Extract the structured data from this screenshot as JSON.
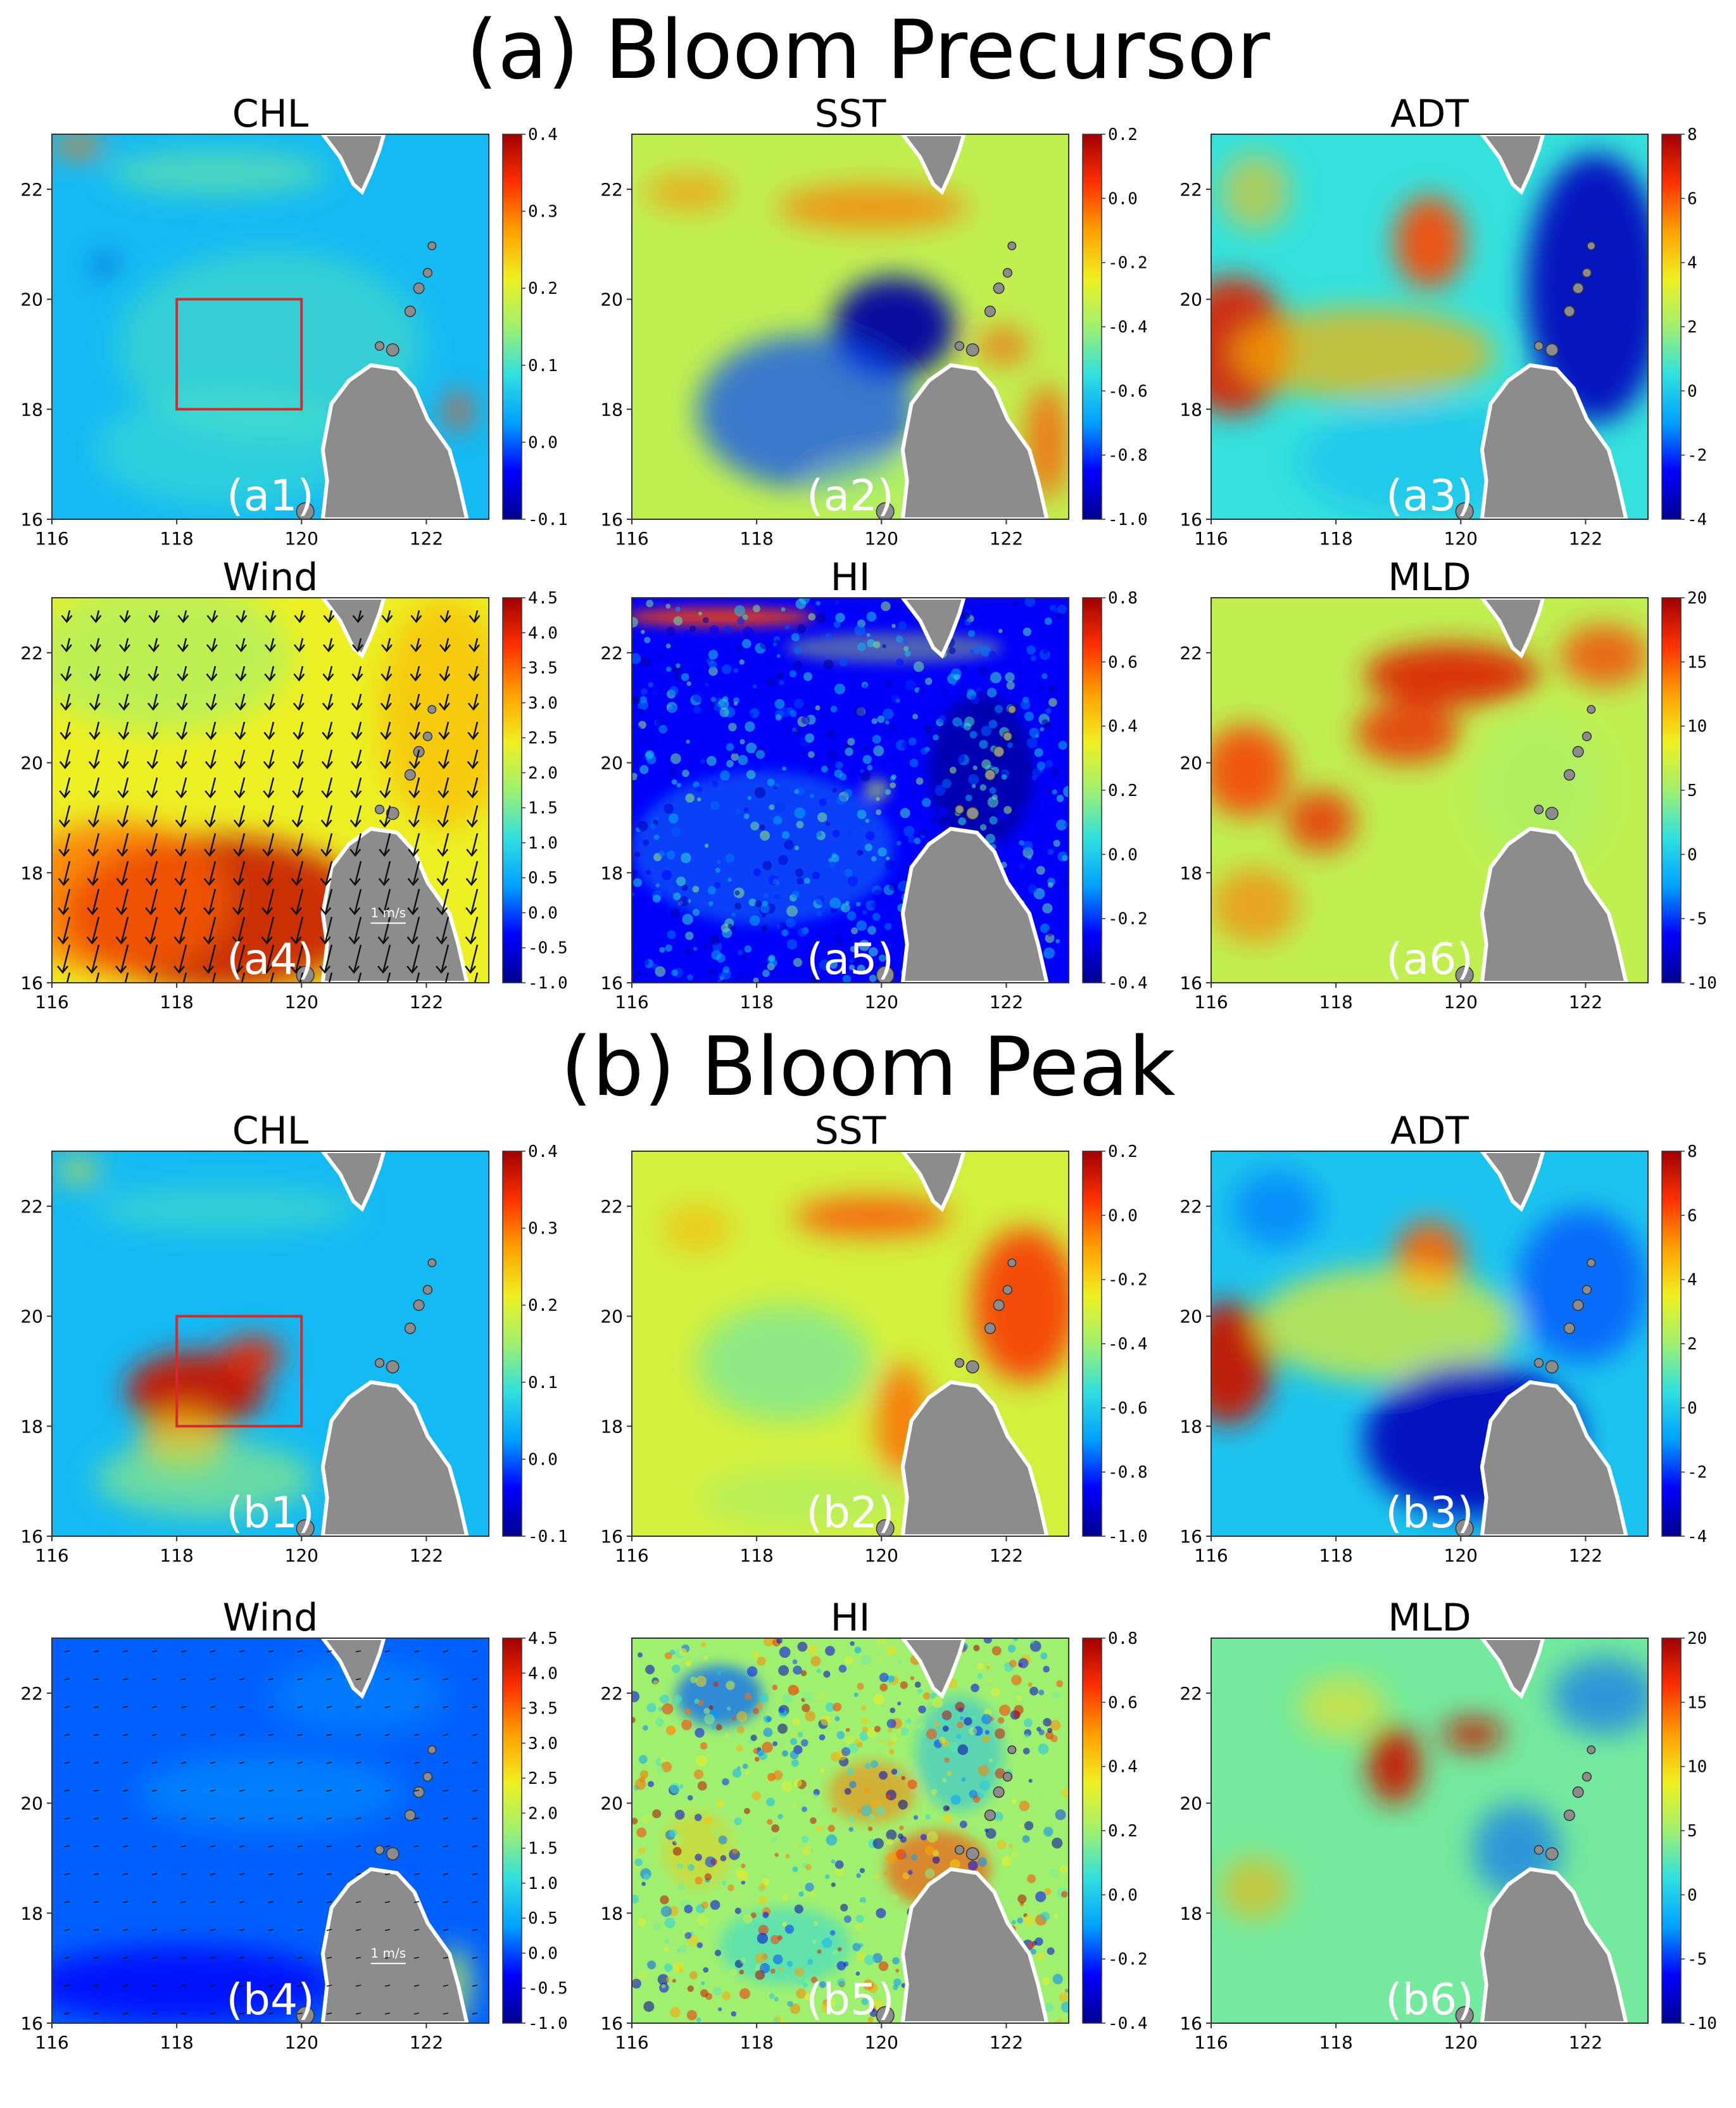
{
  "figure": {
    "sections": [
      {
        "id": "a",
        "title": "(a) Bloom Precursor"
      },
      {
        "id": "b",
        "title": "(b) Bloom Peak"
      }
    ],
    "axes": {
      "lon_ticks": [
        "116",
        "118",
        "120",
        "122"
      ],
      "lat_ticks": [
        "16",
        "18",
        "20",
        "22"
      ]
    },
    "panels": [
      {
        "id": "a1",
        "title": "CHL",
        "label": "(a1)",
        "cbar": [
          "0.4",
          "0.3",
          "0.2",
          "0.1",
          "0.0",
          "-0.1"
        ],
        "field": "chl_pre",
        "box": true
      },
      {
        "id": "a2",
        "title": "SST",
        "label": "(a2)",
        "cbar": [
          "0.2",
          "0.0",
          "-0.2",
          "-0.4",
          "-0.6",
          "-0.8",
          "-1.0"
        ],
        "field": "sst_pre"
      },
      {
        "id": "a3",
        "title": "ADT",
        "label": "(a3)",
        "cbar": [
          "8",
          "6",
          "4",
          "2",
          "0",
          "-2",
          "-4"
        ],
        "field": "adt_pre"
      },
      {
        "id": "a4",
        "title": "Wind",
        "label": "(a4)",
        "cbar": [
          "4.5",
          "4.0",
          "3.5",
          "3.0",
          "2.5",
          "2.0",
          "1.5",
          "1.0",
          "0.5",
          "0.0",
          "-0.5",
          "-1.0"
        ],
        "field": "wind_pre",
        "arrows": true,
        "scale": "1 m/s"
      },
      {
        "id": "a5",
        "title": "HI",
        "label": "(a5)",
        "cbar": [
          "0.8",
          "0.6",
          "0.4",
          "0.2",
          "0.0",
          "-0.2",
          "-0.4"
        ],
        "field": "hi_pre"
      },
      {
        "id": "a6",
        "title": "MLD",
        "label": "(a6)",
        "cbar": [
          "20",
          "15",
          "10",
          "5",
          "0",
          "-5",
          "-10"
        ],
        "field": "mld_pre"
      },
      {
        "id": "b1",
        "title": "CHL",
        "label": "(b1)",
        "cbar": [
          "0.4",
          "0.3",
          "0.2",
          "0.1",
          "0.0",
          "-0.1"
        ],
        "field": "chl_peak",
        "box": true
      },
      {
        "id": "b2",
        "title": "SST",
        "label": "(b2)",
        "cbar": [
          "0.2",
          "0.0",
          "-0.2",
          "-0.4",
          "-0.6",
          "-0.8",
          "-1.0"
        ],
        "field": "sst_peak"
      },
      {
        "id": "b3",
        "title": "ADT",
        "label": "(b3)",
        "cbar": [
          "8",
          "6",
          "4",
          "2",
          "0",
          "-2",
          "-4"
        ],
        "field": "adt_peak"
      },
      {
        "id": "b4",
        "title": "Wind",
        "label": "(b4)",
        "cbar": [
          "4.5",
          "4.0",
          "3.5",
          "3.0",
          "2.5",
          "2.0",
          "1.5",
          "1.0",
          "0.5",
          "0.0",
          "-0.5",
          "-1.0"
        ],
        "field": "wind_peak",
        "arrows": true,
        "scale": "1 m/s"
      },
      {
        "id": "b5",
        "title": "HI",
        "label": "(b5)",
        "cbar": [
          "0.8",
          "0.6",
          "0.4",
          "0.2",
          "0.0",
          "-0.2",
          "-0.4"
        ],
        "field": "hi_peak"
      },
      {
        "id": "b6",
        "title": "MLD",
        "label": "(b6)",
        "cbar": [
          "20",
          "15",
          "10",
          "5",
          "0",
          "-5",
          "-10"
        ],
        "field": "mld_peak"
      }
    ],
    "colors": {
      "land": "#8c8c8c",
      "box": "#d42a2a",
      "jet": [
        "#00008f",
        "#0000ff",
        "#00a0ff",
        "#30e0e0",
        "#a0f070",
        "#f0f020",
        "#ffa000",
        "#ff3000",
        "#a00000"
      ]
    }
  }
}
